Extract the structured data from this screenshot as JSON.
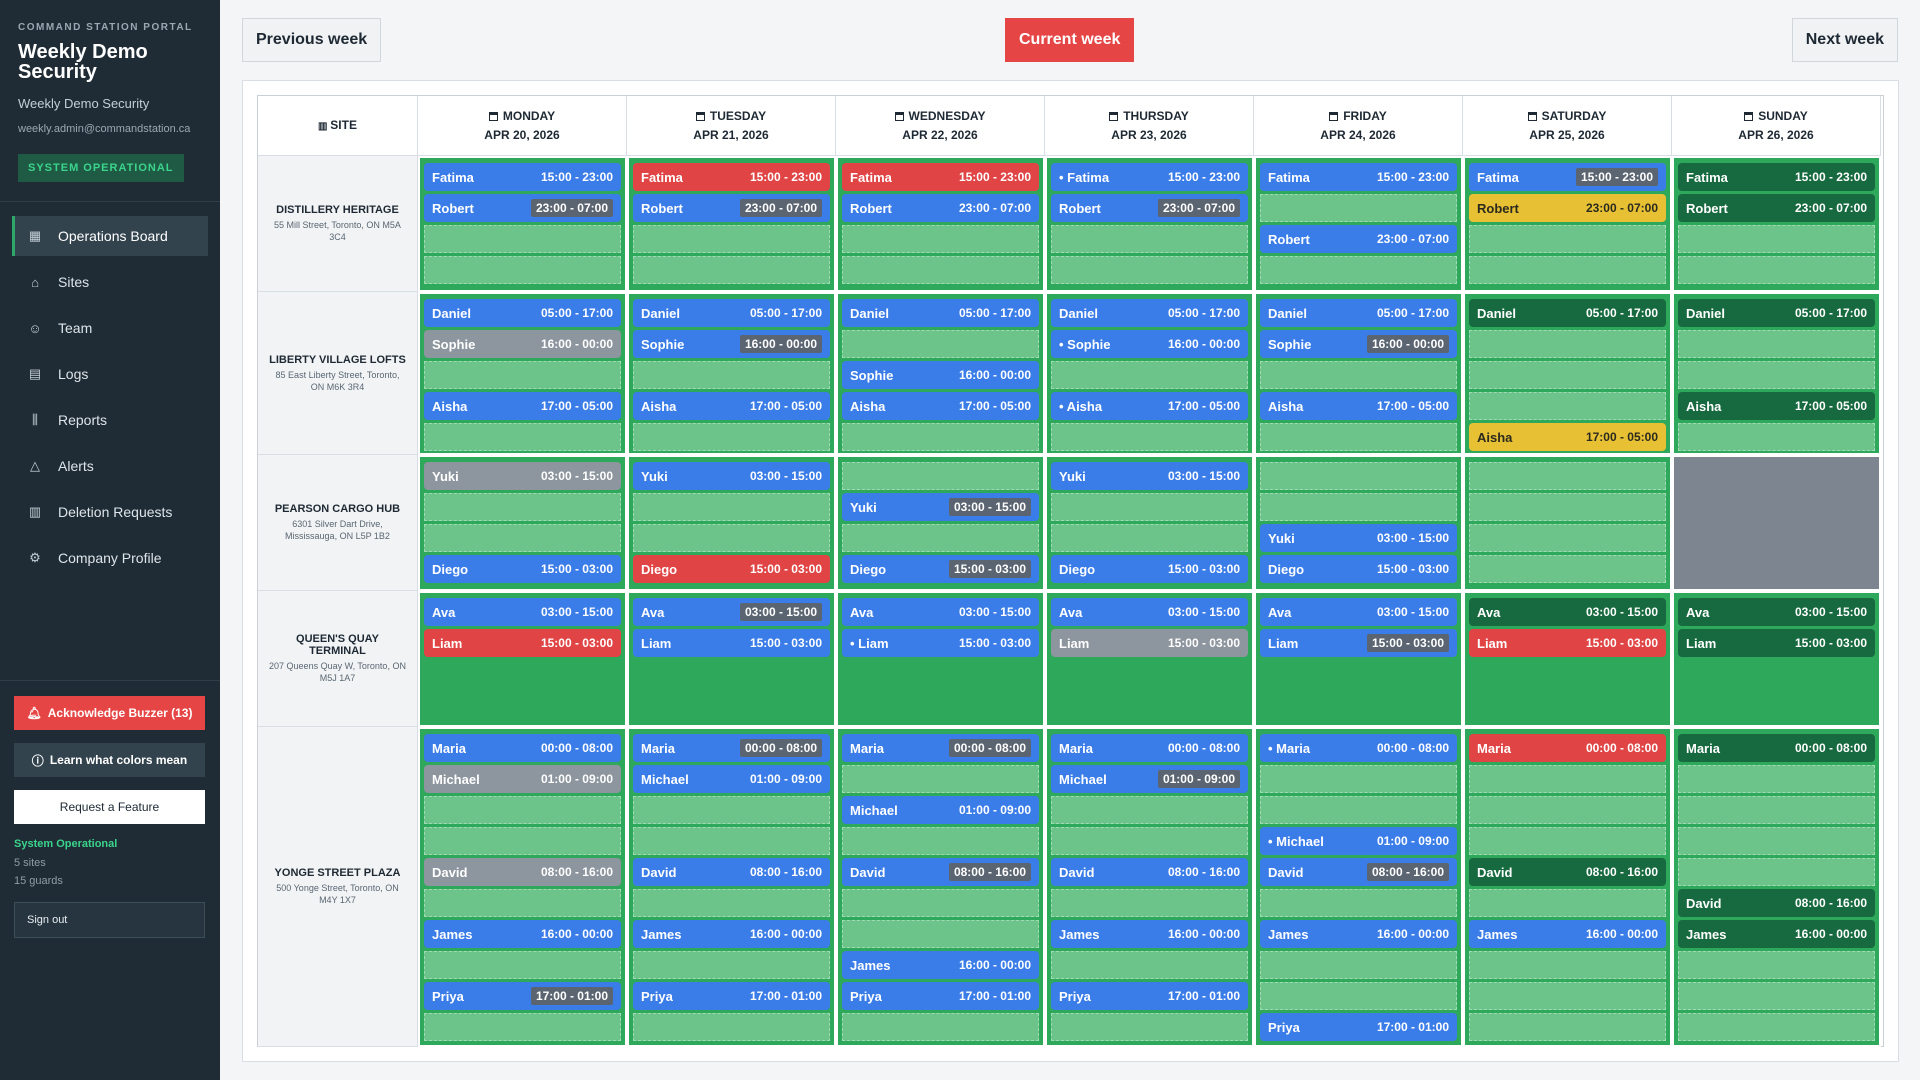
{
  "sidebar": {
    "portal_label": "COMMAND STATION PORTAL",
    "company_name": "Weekly Demo Security",
    "company_sub": "Weekly Demo Security",
    "email": "weekly.admin@commandstation.ca",
    "status_badge": "SYSTEM OPERATIONAL",
    "nav": [
      {
        "label": "Operations Board",
        "icon": "calendar-icon",
        "glyph": "▦",
        "active": true
      },
      {
        "label": "Sites",
        "icon": "home-icon",
        "glyph": "⌂",
        "active": false
      },
      {
        "label": "Team",
        "icon": "team-icon",
        "glyph": "☺",
        "active": false
      },
      {
        "label": "Logs",
        "icon": "document-icon",
        "glyph": "▤",
        "active": false
      },
      {
        "label": "Reports",
        "icon": "bar-chart-icon",
        "glyph": "⫼",
        "active": false
      },
      {
        "label": "Alerts",
        "icon": "warning-icon",
        "glyph": "△",
        "active": false
      },
      {
        "label": "Deletion Requests",
        "icon": "trash-icon",
        "glyph": "▥",
        "active": false
      },
      {
        "label": "Company Profile",
        "icon": "gear-icon",
        "glyph": "⚙",
        "active": false
      }
    ],
    "buzzer_label": "Acknowledge Buzzer (13)",
    "colors_label": "Learn what colors mean",
    "feature_label": "Request a Feature",
    "system_status": "System Operational",
    "sites_count": "5 sites",
    "guards_count": "15 guards",
    "signout_label": "Sign out"
  },
  "toolbar": {
    "prev_label": "Previous week",
    "current_label": "Current week",
    "next_label": "Next week"
  },
  "board": {
    "site_header": "SITE",
    "days": [
      {
        "day": "MONDAY",
        "date": "APR 20, 2026"
      },
      {
        "day": "TUESDAY",
        "date": "APR 21, 2026"
      },
      {
        "day": "WEDNESDAY",
        "date": "APR 22, 2026"
      },
      {
        "day": "THURSDAY",
        "date": "APR 23, 2026"
      },
      {
        "day": "FRIDAY",
        "date": "APR 24, 2026"
      },
      {
        "day": "SATURDAY",
        "date": "APR 25, 2026"
      },
      {
        "day": "SUNDAY",
        "date": "APR 26, 2026"
      }
    ],
    "colors": {
      "blue": "#3b7de8",
      "red": "#e04444",
      "grey": "#8d959e",
      "yellow": "#e8c033",
      "dark": "#176a3f",
      "green": "#2ea85a",
      "closed": "#7d8690"
    },
    "sites": [
      {
        "name": "DISTILLERY HERITAGE",
        "address": "55 Mill Street, Toronto, ON M5A 3C4",
        "slots": 4,
        "cells": [
          [
            {
              "slot": 0,
              "name": "Fatima",
              "time": "15:00 - 23:00",
              "color": "blue"
            },
            {
              "slot": 1,
              "name": "Robert",
              "time": "23:00 - 07:00",
              "color": "blue",
              "boxed": true
            }
          ],
          [
            {
              "slot": 0,
              "name": "Fatima",
              "time": "15:00 - 23:00",
              "color": "red"
            },
            {
              "slot": 1,
              "name": "Robert",
              "time": "23:00 - 07:00",
              "color": "blue",
              "boxed": true
            }
          ],
          [
            {
              "slot": 0,
              "name": "Fatima",
              "time": "15:00 - 23:00",
              "color": "red"
            },
            {
              "slot": 1,
              "name": "Robert",
              "time": "23:00 - 07:00",
              "color": "blue"
            }
          ],
          [
            {
              "slot": 0,
              "name": "• Fatima",
              "time": "15:00 - 23:00",
              "color": "blue"
            },
            {
              "slot": 1,
              "name": "Robert",
              "time": "23:00 - 07:00",
              "color": "blue",
              "boxed": true
            }
          ],
          [
            {
              "slot": 0,
              "name": "Fatima",
              "time": "15:00 - 23:00",
              "color": "blue"
            },
            {
              "slot": 2,
              "name": "Robert",
              "time": "23:00 - 07:00",
              "color": "blue"
            }
          ],
          [
            {
              "slot": 0,
              "name": "Fatima",
              "time": "15:00 - 23:00",
              "color": "blue",
              "boxed": true
            },
            {
              "slot": 1,
              "name": "Robert",
              "time": "23:00 - 07:00",
              "color": "yellow"
            }
          ],
          [
            {
              "slot": 0,
              "name": "Fatima",
              "time": "15:00 - 23:00",
              "color": "dark"
            },
            {
              "slot": 1,
              "name": "Robert",
              "time": "23:00 - 07:00",
              "color": "dark"
            }
          ]
        ]
      },
      {
        "name": "LIBERTY VILLAGE LOFTS",
        "address": "85 East Liberty Street, Toronto, ON M6K 3R4",
        "slots": 5,
        "cells": [
          [
            {
              "slot": 0,
              "name": "Daniel",
              "time": "05:00 - 17:00",
              "color": "blue"
            },
            {
              "slot": 1,
              "name": "Sophie",
              "time": "16:00 - 00:00",
              "color": "grey"
            },
            {
              "slot": 3,
              "name": "Aisha",
              "time": "17:00 - 05:00",
              "color": "blue"
            }
          ],
          [
            {
              "slot": 0,
              "name": "Daniel",
              "time": "05:00 - 17:00",
              "color": "blue"
            },
            {
              "slot": 1,
              "name": "Sophie",
              "time": "16:00 - 00:00",
              "color": "blue",
              "boxed": true
            },
            {
              "slot": 3,
              "name": "Aisha",
              "time": "17:00 - 05:00",
              "color": "blue"
            }
          ],
          [
            {
              "slot": 0,
              "name": "Daniel",
              "time": "05:00 - 17:00",
              "color": "blue"
            },
            {
              "slot": 2,
              "name": "Sophie",
              "time": "16:00 - 00:00",
              "color": "blue"
            },
            {
              "slot": 3,
              "name": "Aisha",
              "time": "17:00 - 05:00",
              "color": "blue"
            }
          ],
          [
            {
              "slot": 0,
              "name": "Daniel",
              "time": "05:00 - 17:00",
              "color": "blue"
            },
            {
              "slot": 1,
              "name": "• Sophie",
              "time": "16:00 - 00:00",
              "color": "blue"
            },
            {
              "slot": 3,
              "name": "• Aisha",
              "time": "17:00 - 05:00",
              "color": "blue"
            }
          ],
          [
            {
              "slot": 0,
              "name": "Daniel",
              "time": "05:00 - 17:00",
              "color": "blue"
            },
            {
              "slot": 1,
              "name": "Sophie",
              "time": "16:00 - 00:00",
              "color": "blue",
              "boxed": true
            },
            {
              "slot": 3,
              "name": "Aisha",
              "time": "17:00 - 05:00",
              "color": "blue"
            }
          ],
          [
            {
              "slot": 0,
              "name": "Daniel",
              "time": "05:00 - 17:00",
              "color": "dark"
            },
            {
              "slot": 4,
              "name": "Aisha",
              "time": "17:00 - 05:00",
              "color": "yellow"
            }
          ],
          [
            {
              "slot": 0,
              "name": "Daniel",
              "time": "05:00 - 17:00",
              "color": "dark"
            },
            {
              "slot": 3,
              "name": "Aisha",
              "time": "17:00 - 05:00",
              "color": "dark"
            }
          ]
        ]
      },
      {
        "name": "PEARSON CARGO HUB",
        "address": "6301 Silver Dart Drive, Mississauga, ON L5P 1B2",
        "slots": 4,
        "cells": [
          [
            {
              "slot": 0,
              "name": "Yuki",
              "time": "03:00 - 15:00",
              "color": "grey"
            },
            {
              "slot": 3,
              "name": "Diego",
              "time": "15:00 - 03:00",
              "color": "blue"
            }
          ],
          [
            {
              "slot": 0,
              "name": "Yuki",
              "time": "03:00 - 15:00",
              "color": "blue"
            },
            {
              "slot": 3,
              "name": "Diego",
              "time": "15:00 - 03:00",
              "color": "red"
            }
          ],
          [
            {
              "slot": 1,
              "name": "Yuki",
              "time": "03:00 - 15:00",
              "color": "blue",
              "boxed": true
            },
            {
              "slot": 3,
              "name": "Diego",
              "time": "15:00 - 03:00",
              "color": "blue",
              "boxed": true
            }
          ],
          [
            {
              "slot": 0,
              "name": "Yuki",
              "time": "03:00 - 15:00",
              "color": "blue"
            },
            {
              "slot": 3,
              "name": "Diego",
              "time": "15:00 - 03:00",
              "color": "blue"
            }
          ],
          [
            {
              "slot": 2,
              "name": "Yuki",
              "time": "03:00 - 15:00",
              "color": "blue"
            },
            {
              "slot": 3,
              "name": "Diego",
              "time": "15:00 - 03:00",
              "color": "blue"
            }
          ],
          [],
          "closed"
        ]
      },
      {
        "name": "QUEEN'S QUAY TERMINAL",
        "address": "207 Queens Quay W, Toronto, ON M5J 1A7",
        "slots": 2,
        "cells": [
          [
            {
              "slot": 0,
              "name": "Ava",
              "time": "03:00 - 15:00",
              "color": "blue"
            },
            {
              "slot": 1,
              "name": "Liam",
              "time": "15:00 - 03:00",
              "color": "red"
            }
          ],
          [
            {
              "slot": 0,
              "name": "Ava",
              "time": "03:00 - 15:00",
              "color": "blue",
              "boxed": true
            },
            {
              "slot": 1,
              "name": "Liam",
              "time": "15:00 - 03:00",
              "color": "blue"
            }
          ],
          [
            {
              "slot": 0,
              "name": "Ava",
              "time": "03:00 - 15:00",
              "color": "blue"
            },
            {
              "slot": 1,
              "name": "• Liam",
              "time": "15:00 - 03:00",
              "color": "blue"
            }
          ],
          [
            {
              "slot": 0,
              "name": "Ava",
              "time": "03:00 - 15:00",
              "color": "blue"
            },
            {
              "slot": 1,
              "name": "Liam",
              "time": "15:00 - 03:00",
              "color": "grey"
            }
          ],
          [
            {
              "slot": 0,
              "name": "Ava",
              "time": "03:00 - 15:00",
              "color": "blue"
            },
            {
              "slot": 1,
              "name": "Liam",
              "time": "15:00 - 03:00",
              "color": "blue",
              "boxed": true
            }
          ],
          [
            {
              "slot": 0,
              "name": "Ava",
              "time": "03:00 - 15:00",
              "color": "dark"
            },
            {
              "slot": 1,
              "name": "Liam",
              "time": "15:00 - 03:00",
              "color": "red"
            }
          ],
          [
            {
              "slot": 0,
              "name": "Ava",
              "time": "03:00 - 15:00",
              "color": "dark"
            },
            {
              "slot": 1,
              "name": "Liam",
              "time": "15:00 - 03:00",
              "color": "dark"
            }
          ]
        ]
      },
      {
        "name": "YONGE STREET PLAZA",
        "address": "500 Yonge Street, Toronto, ON M4Y 1X7",
        "slots": 10,
        "cells": [
          [
            {
              "slot": 0,
              "name": "Maria",
              "time": "00:00 - 08:00",
              "color": "blue"
            },
            {
              "slot": 1,
              "name": "Michael",
              "time": "01:00 - 09:00",
              "color": "grey"
            },
            {
              "slot": 4,
              "name": "David",
              "time": "08:00 - 16:00",
              "color": "grey"
            },
            {
              "slot": 6,
              "name": "James",
              "time": "16:00 - 00:00",
              "color": "blue"
            },
            {
              "slot": 8,
              "name": "Priya",
              "time": "17:00 - 01:00",
              "color": "blue",
              "boxed": true
            }
          ],
          [
            {
              "slot": 0,
              "name": "Maria",
              "time": "00:00 - 08:00",
              "color": "blue",
              "boxed": true
            },
            {
              "slot": 1,
              "name": "Michael",
              "time": "01:00 - 09:00",
              "color": "blue"
            },
            {
              "slot": 4,
              "name": "David",
              "time": "08:00 - 16:00",
              "color": "blue"
            },
            {
              "slot": 6,
              "name": "James",
              "time": "16:00 - 00:00",
              "color": "blue"
            },
            {
              "slot": 8,
              "name": "Priya",
              "time": "17:00 - 01:00",
              "color": "blue"
            }
          ],
          [
            {
              "slot": 0,
              "name": "Maria",
              "time": "00:00 - 08:00",
              "color": "blue",
              "boxed": true
            },
            {
              "slot": 2,
              "name": "Michael",
              "time": "01:00 - 09:00",
              "color": "blue"
            },
            {
              "slot": 4,
              "name": "David",
              "time": "08:00 - 16:00",
              "color": "blue",
              "boxed": true
            },
            {
              "slot": 7,
              "name": "James",
              "time": "16:00 - 00:00",
              "color": "blue"
            },
            {
              "slot": 8,
              "name": "Priya",
              "time": "17:00 - 01:00",
              "color": "blue"
            }
          ],
          [
            {
              "slot": 0,
              "name": "Maria",
              "time": "00:00 - 08:00",
              "color": "blue"
            },
            {
              "slot": 1,
              "name": "Michael",
              "time": "01:00 - 09:00",
              "color": "blue",
              "boxed": true
            },
            {
              "slot": 4,
              "name": "David",
              "time": "08:00 - 16:00",
              "color": "blue"
            },
            {
              "slot": 6,
              "name": "James",
              "time": "16:00 - 00:00",
              "color": "blue"
            },
            {
              "slot": 8,
              "name": "Priya",
              "time": "17:00 - 01:00",
              "color": "blue"
            }
          ],
          [
            {
              "slot": 0,
              "name": "• Maria",
              "time": "00:00 - 08:00",
              "color": "blue"
            },
            {
              "slot": 3,
              "name": "• Michael",
              "time": "01:00 - 09:00",
              "color": "blue"
            },
            {
              "slot": 4,
              "name": "David",
              "time": "08:00 - 16:00",
              "color": "blue",
              "boxed": true
            },
            {
              "slot": 6,
              "name": "James",
              "time": "16:00 - 00:00",
              "color": "blue"
            },
            {
              "slot": 9,
              "name": "Priya",
              "time": "17:00 - 01:00",
              "color": "blue"
            }
          ],
          [
            {
              "slot": 0,
              "name": "Maria",
              "time": "00:00 - 08:00",
              "color": "red"
            },
            {
              "slot": 4,
              "name": "David",
              "time": "08:00 - 16:00",
              "color": "dark"
            },
            {
              "slot": 6,
              "name": "James",
              "time": "16:00 - 00:00",
              "color": "blue"
            }
          ],
          [
            {
              "slot": 0,
              "name": "Maria",
              "time": "00:00 - 08:00",
              "color": "dark"
            },
            {
              "slot": 5,
              "name": "David",
              "time": "08:00 - 16:00",
              "color": "dark"
            },
            {
              "slot": 6,
              "name": "James",
              "time": "16:00 - 00:00",
              "color": "dark"
            }
          ]
        ]
      }
    ]
  }
}
